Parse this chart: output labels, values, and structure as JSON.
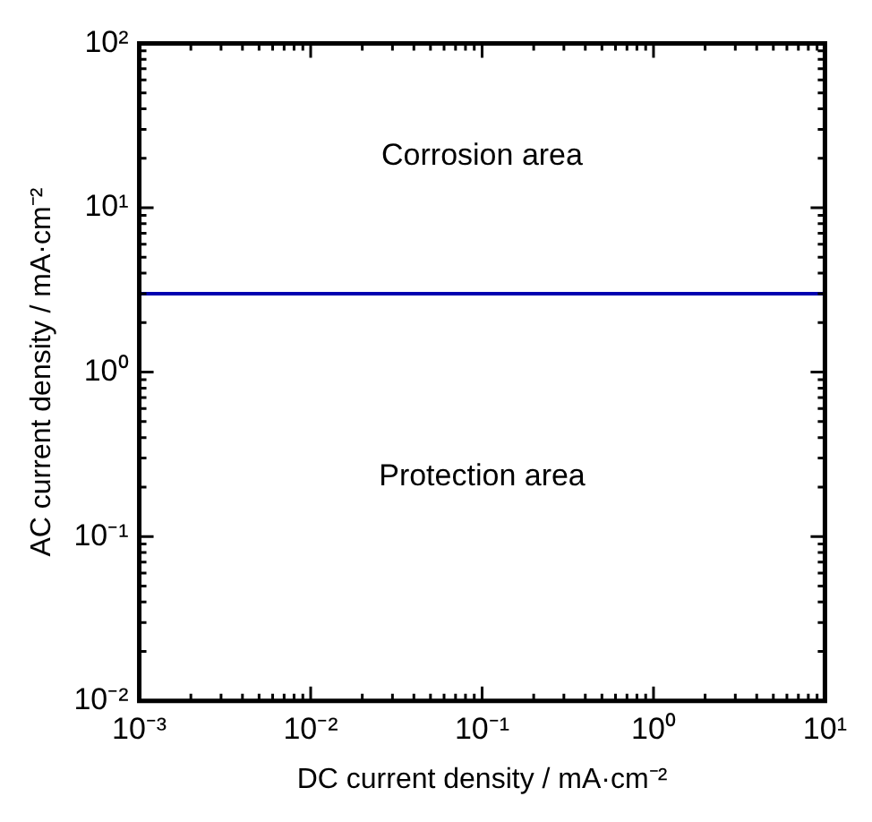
{
  "chart_data": {
    "type": "line",
    "xlabel": "DC current density / mA·cm⁻²",
    "ylabel": "AC current density / mA·cm⁻²",
    "log": "xy",
    "xlim": [
      0.001,
      10
    ],
    "ylim": [
      0.01,
      100
    ],
    "xticks": [
      {
        "value": 0.001,
        "label": "10⁻³"
      },
      {
        "value": 0.01,
        "label": "10⁻²"
      },
      {
        "value": 0.1,
        "label": "10⁻¹"
      },
      {
        "value": 1,
        "label": "10⁰"
      },
      {
        "value": 10,
        "label": "10¹"
      }
    ],
    "yticks": [
      {
        "value": 0.01,
        "label": "10⁻²"
      },
      {
        "value": 0.1,
        "label": "10⁻¹"
      },
      {
        "value": 1,
        "label": "10⁰"
      },
      {
        "value": 10,
        "label": "10¹"
      },
      {
        "value": 100,
        "label": "10²"
      }
    ],
    "ref_lines": [
      {
        "axis": "y",
        "value": 3,
        "color": "#0000b0",
        "line_style": "solid"
      }
    ],
    "annotations": [
      "Corrosion area",
      "Protection area"
    ],
    "grid": false,
    "legend": false
  }
}
